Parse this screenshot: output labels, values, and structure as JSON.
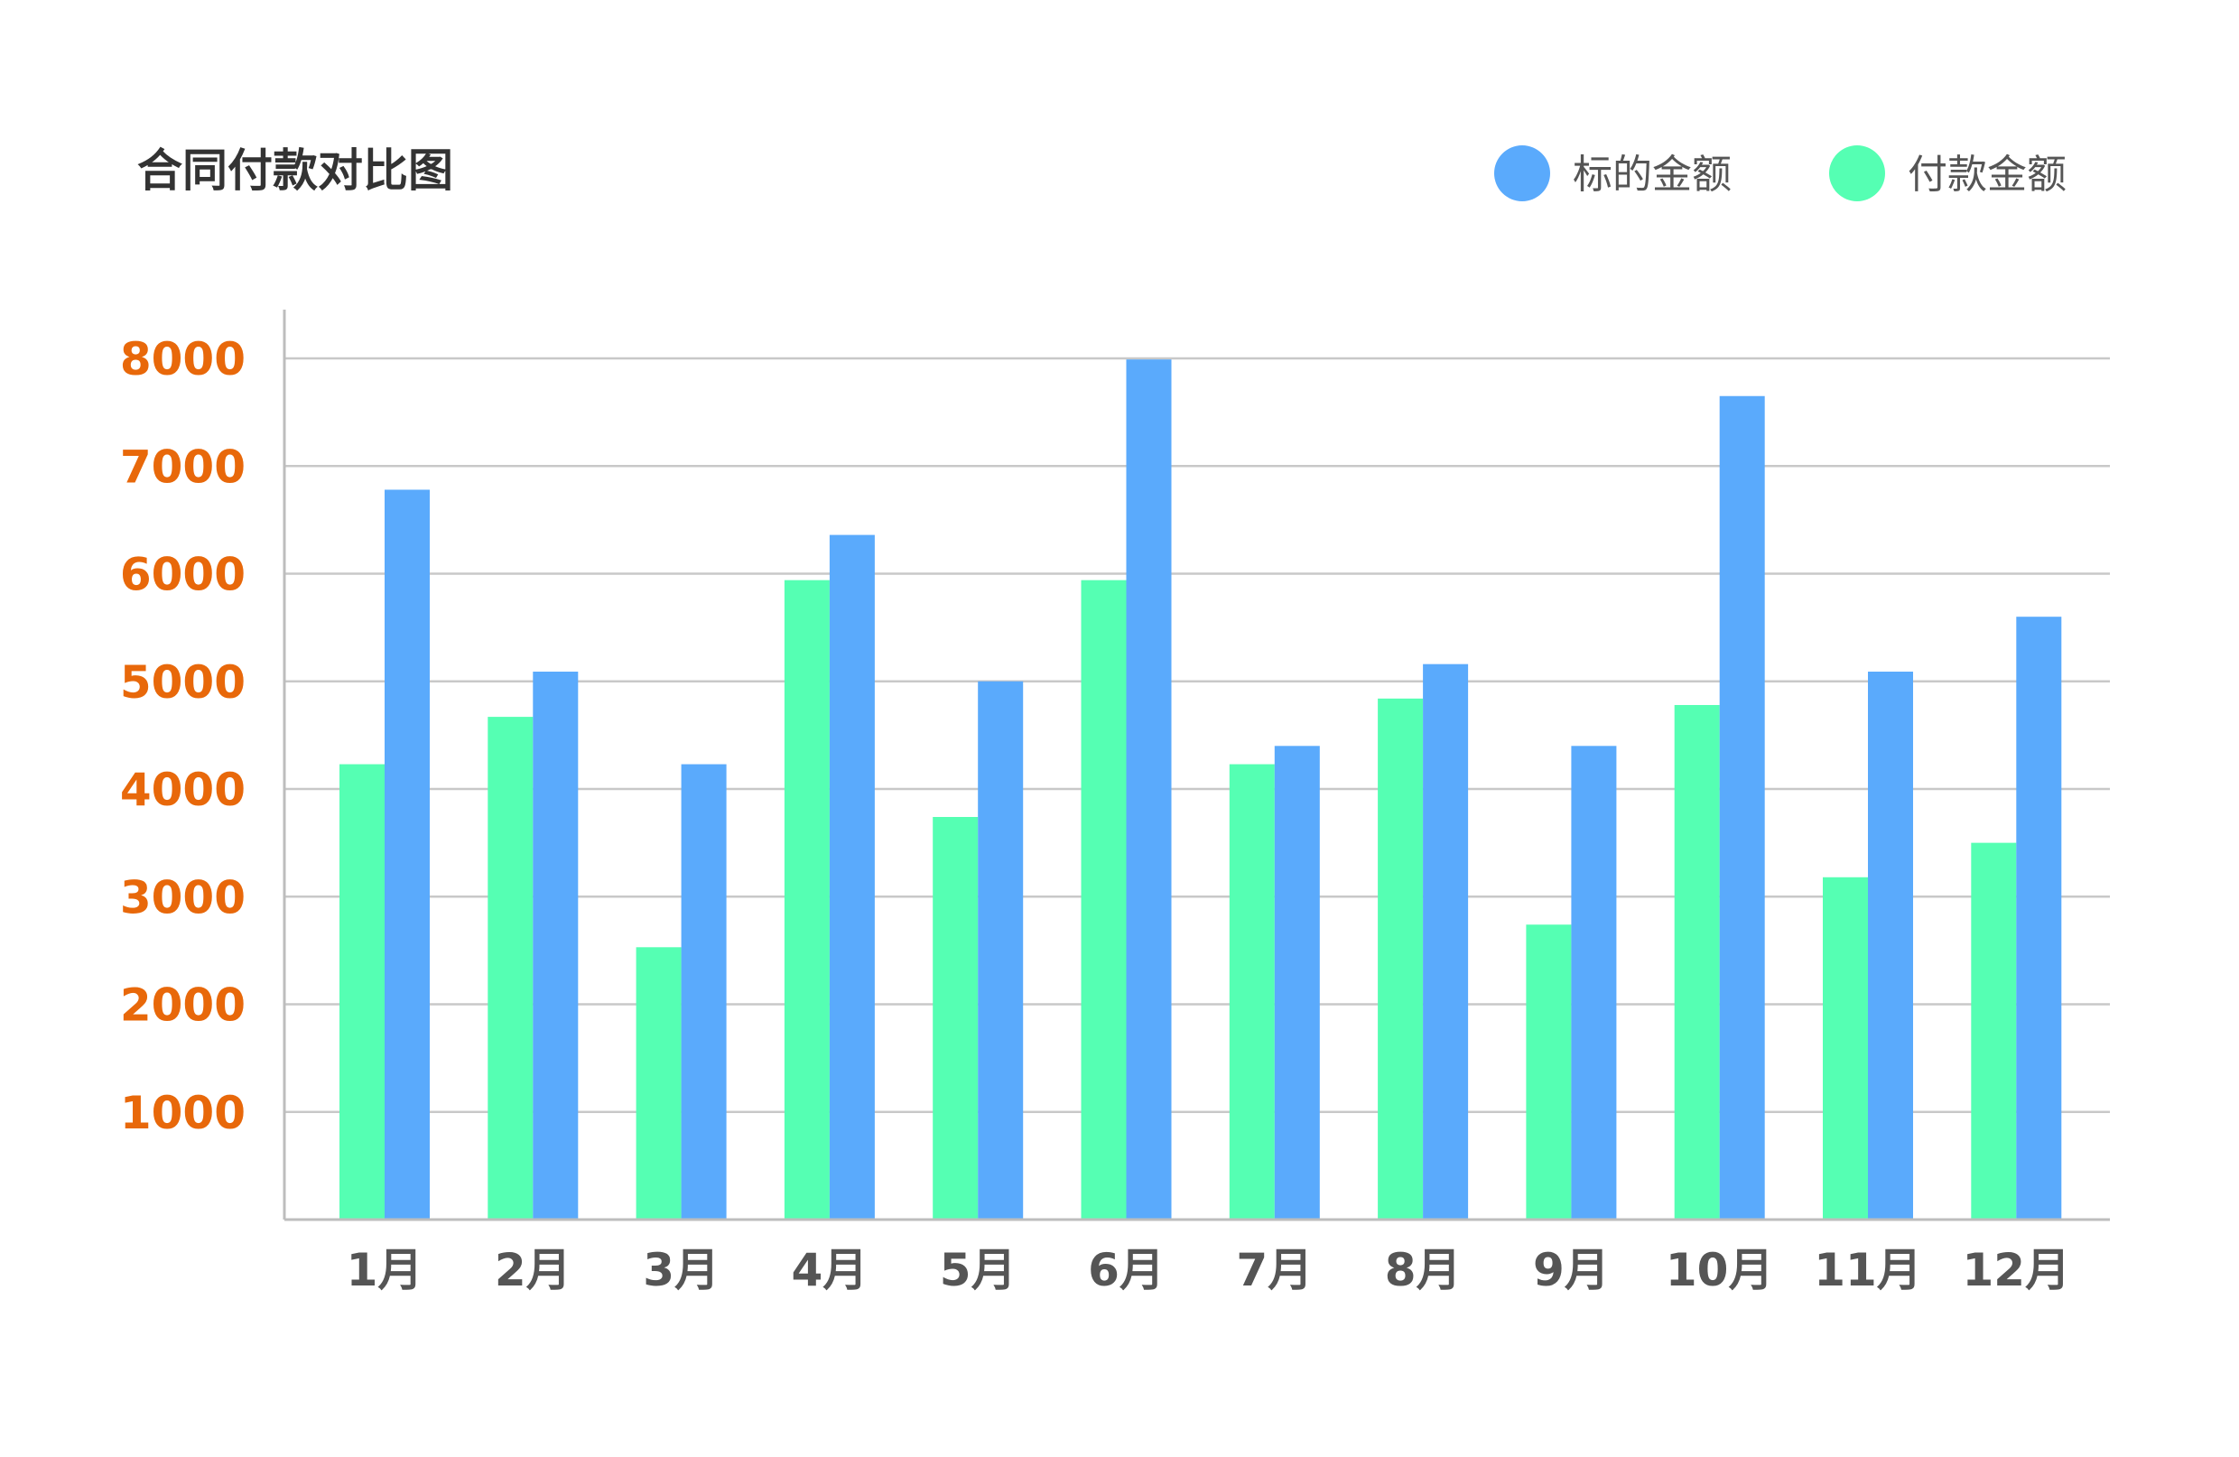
{
  "chart_data": {
    "type": "bar",
    "title": "合同付款对比图",
    "categories": [
      "1月",
      "2月",
      "3月",
      "4月",
      "5月",
      "6月",
      "7月",
      "8月",
      "9月",
      "10月",
      "11月",
      "12月"
    ],
    "series": [
      {
        "name": "付款金额",
        "color": "#55ffb3",
        "values": [
          4230,
          4670,
          2530,
          5940,
          3740,
          5940,
          4230,
          4840,
          2740,
          4780,
          3180,
          3500
        ]
      },
      {
        "name": "标的金额",
        "color": "#5aaafc",
        "values": [
          6780,
          5090,
          4230,
          6360,
          5000,
          7990,
          4400,
          5160,
          4400,
          7650,
          5090,
          5600
        ]
      }
    ],
    "legend_order": [
      1,
      0
    ],
    "legend_position": "top-right",
    "y_ticks": [
      1000,
      2000,
      3000,
      4000,
      5000,
      6000,
      7000,
      8000
    ],
    "ylim": [
      0,
      8000
    ],
    "xlabel": "",
    "ylabel": "",
    "grid": true,
    "ytick_color": "#e8680a"
  }
}
